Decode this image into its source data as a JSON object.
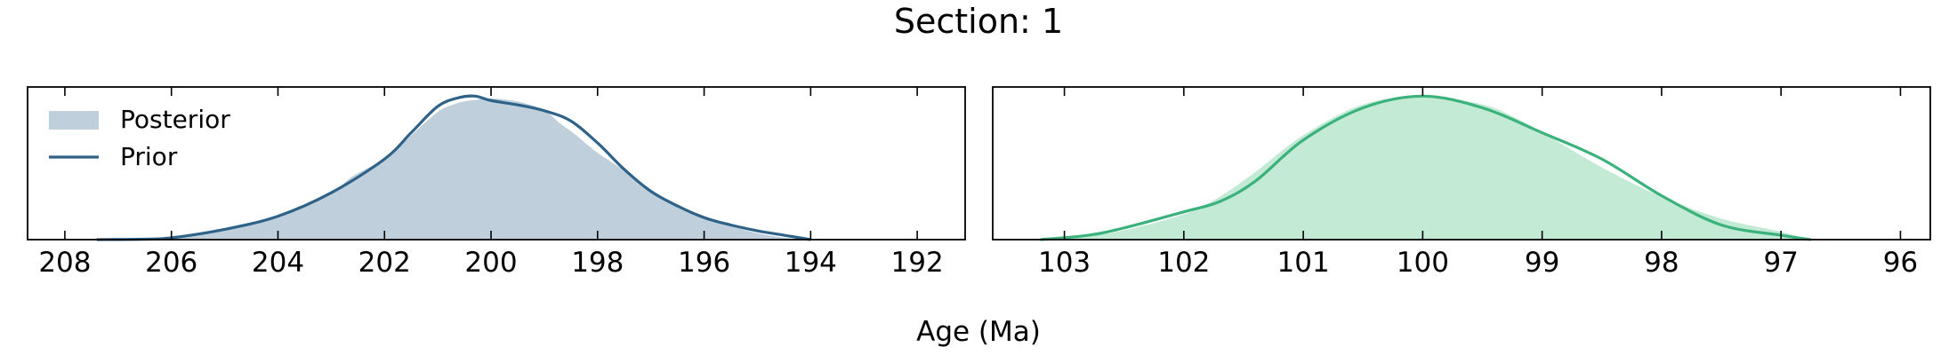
{
  "figure": {
    "title": "Section: 1",
    "xlabel": "Age (Ma)"
  },
  "chart_data": [
    {
      "type": "area",
      "xlim": [
        208.7,
        191.1
      ],
      "x_reversed": true,
      "ticks": [
        208,
        206,
        204,
        202,
        200,
        198,
        196,
        194,
        192
      ],
      "tick_labels": [
        "208",
        "206",
        "204",
        "202",
        "200",
        "198",
        "196",
        "194",
        "192"
      ],
      "legend": {
        "placement": "top-left",
        "entries": [
          "Posterior",
          "Prior"
        ]
      },
      "series": [
        {
          "name": "Posterior",
          "style": "fill",
          "color": "#bfd0dc",
          "x": [
            207.4,
            206.5,
            206.0,
            205.0,
            204.0,
            203.0,
            202.6,
            202.0,
            201.5,
            201.0,
            200.7,
            200.5,
            200.3,
            200.0,
            199.5,
            199.0,
            198.7,
            198.4,
            198.0,
            197.5,
            197.0,
            196.5,
            196.0,
            195.5,
            195.0,
            194.5,
            194.0
          ],
          "y": [
            0.0,
            0.003,
            0.012,
            0.07,
            0.17,
            0.33,
            0.44,
            0.56,
            0.72,
            0.88,
            0.93,
            0.95,
            0.96,
            0.97,
            0.95,
            0.89,
            0.8,
            0.72,
            0.6,
            0.48,
            0.35,
            0.24,
            0.17,
            0.1,
            0.05,
            0.02,
            0.0
          ]
        },
        {
          "name": "Prior",
          "style": "line",
          "color": "#2e6289",
          "x": [
            207.4,
            206.5,
            206.0,
            205.0,
            204.0,
            203.0,
            202.0,
            201.5,
            201.0,
            200.6,
            200.3,
            200.0,
            199.5,
            199.0,
            198.5,
            198.0,
            197.5,
            197.0,
            196.5,
            196.0,
            195.5,
            195.0,
            194.5,
            194.0
          ],
          "y": [
            0.0,
            0.003,
            0.012,
            0.07,
            0.16,
            0.32,
            0.55,
            0.73,
            0.91,
            0.97,
            0.98,
            0.95,
            0.92,
            0.88,
            0.81,
            0.66,
            0.48,
            0.33,
            0.23,
            0.15,
            0.1,
            0.06,
            0.03,
            0.0
          ]
        }
      ]
    },
    {
      "type": "area",
      "xlim": [
        103.6,
        95.75
      ],
      "x_reversed": true,
      "ticks": [
        103,
        102,
        101,
        100,
        99,
        98,
        97,
        96
      ],
      "tick_labels": [
        "103",
        "102",
        "101",
        "100",
        "99",
        "98",
        "97",
        "96"
      ],
      "series": [
        {
          "name": "Posterior",
          "style": "fill",
          "color": "#c2ead5",
          "x": [
            103.2,
            102.8,
            102.5,
            102.0,
            101.7,
            101.4,
            101.0,
            100.5,
            100.0,
            99.5,
            99.2,
            99.0,
            98.5,
            98.0,
            97.5,
            97.0,
            96.75
          ],
          "y": [
            0.0,
            0.03,
            0.07,
            0.18,
            0.3,
            0.47,
            0.72,
            0.93,
            0.98,
            0.93,
            0.83,
            0.74,
            0.5,
            0.3,
            0.15,
            0.06,
            0.0
          ]
        },
        {
          "name": "Prior",
          "style": "line",
          "color": "#3bb27b",
          "x": [
            103.2,
            102.8,
            102.5,
            102.0,
            101.7,
            101.4,
            101.0,
            100.5,
            100.0,
            99.5,
            99.0,
            98.5,
            98.0,
            97.5,
            97.0,
            96.75
          ],
          "y": [
            0.0,
            0.03,
            0.08,
            0.19,
            0.26,
            0.4,
            0.68,
            0.9,
            0.98,
            0.9,
            0.73,
            0.55,
            0.3,
            0.1,
            0.03,
            0.0
          ]
        }
      ]
    }
  ]
}
